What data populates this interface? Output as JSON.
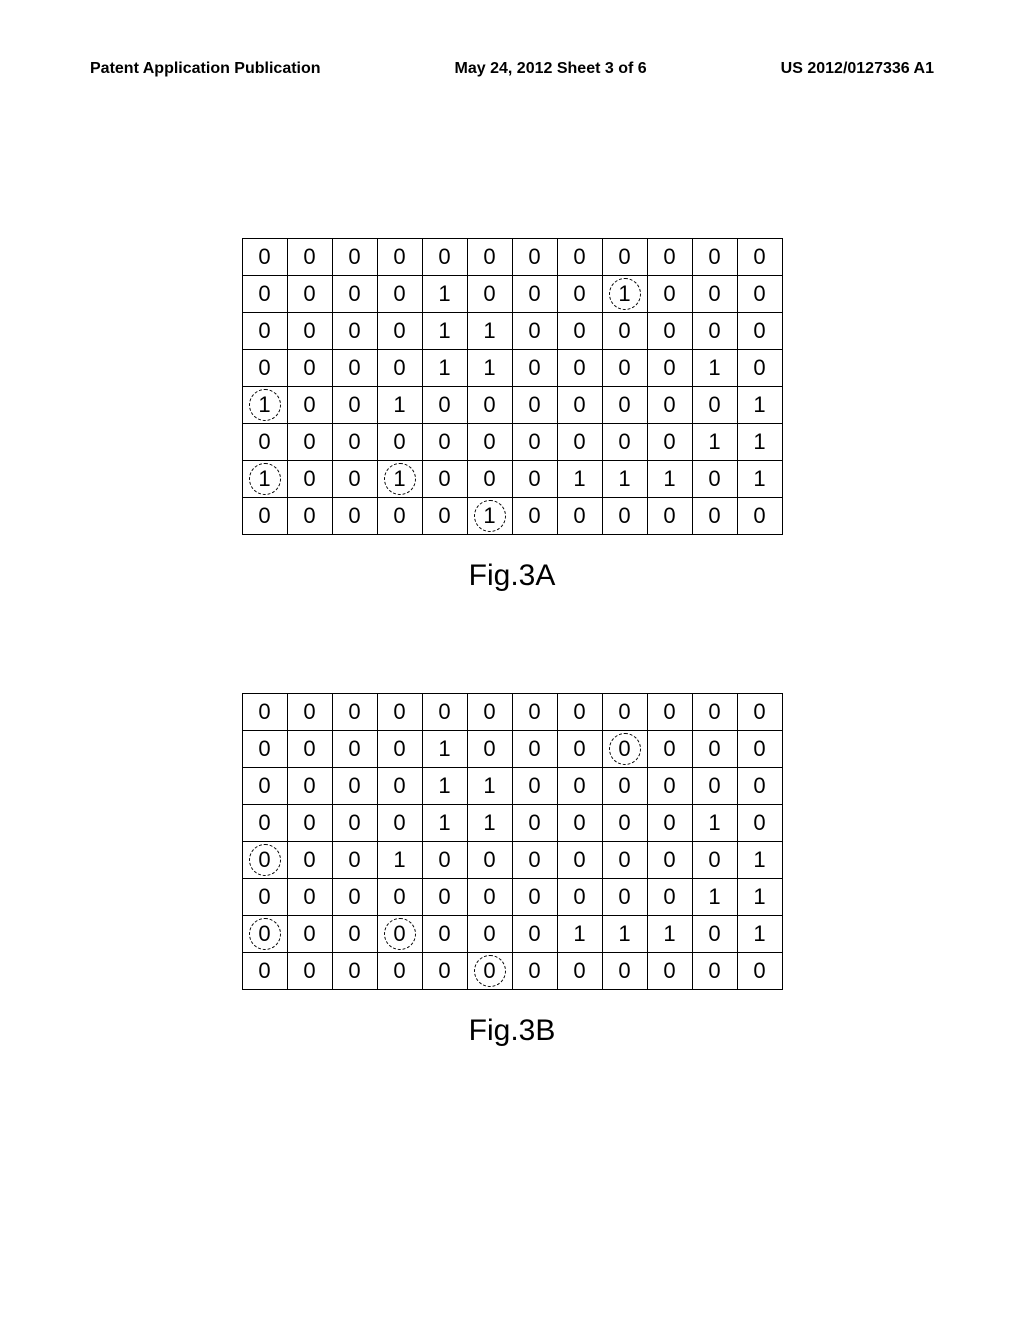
{
  "header": {
    "left": "Patent Application Publication",
    "center": "May 24, 2012  Sheet 3 of 6",
    "right": "US 2012/0127336 A1"
  },
  "figures": [
    {
      "caption": "Fig.3A",
      "cols": 12,
      "cells": [
        [
          [
            0,
            0
          ],
          [
            0,
            0
          ],
          [
            0,
            0
          ],
          [
            0,
            0
          ],
          [
            0,
            0
          ],
          [
            0,
            0
          ],
          [
            0,
            0
          ],
          [
            0,
            0
          ],
          [
            0,
            0
          ],
          [
            0,
            0
          ],
          [
            0,
            0
          ],
          [
            0,
            0
          ]
        ],
        [
          [
            0,
            0
          ],
          [
            0,
            0
          ],
          [
            0,
            0
          ],
          [
            0,
            0
          ],
          [
            1,
            0
          ],
          [
            0,
            0
          ],
          [
            0,
            0
          ],
          [
            0,
            0
          ],
          [
            1,
            1
          ],
          [
            0,
            0
          ],
          [
            0,
            0
          ],
          [
            0,
            0
          ]
        ],
        [
          [
            0,
            0
          ],
          [
            0,
            0
          ],
          [
            0,
            0
          ],
          [
            0,
            0
          ],
          [
            1,
            0
          ],
          [
            1,
            0
          ],
          [
            0,
            0
          ],
          [
            0,
            0
          ],
          [
            0,
            0
          ],
          [
            0,
            0
          ],
          [
            0,
            0
          ],
          [
            0,
            0
          ]
        ],
        [
          [
            0,
            0
          ],
          [
            0,
            0
          ],
          [
            0,
            0
          ],
          [
            0,
            0
          ],
          [
            1,
            0
          ],
          [
            1,
            0
          ],
          [
            0,
            0
          ],
          [
            0,
            0
          ],
          [
            0,
            0
          ],
          [
            0,
            0
          ],
          [
            1,
            0
          ],
          [
            0,
            0
          ]
        ],
        [
          [
            1,
            1
          ],
          [
            0,
            0
          ],
          [
            0,
            0
          ],
          [
            1,
            0
          ],
          [
            0,
            0
          ],
          [
            0,
            0
          ],
          [
            0,
            0
          ],
          [
            0,
            0
          ],
          [
            0,
            0
          ],
          [
            0,
            0
          ],
          [
            0,
            0
          ],
          [
            1,
            0
          ]
        ],
        [
          [
            0,
            0
          ],
          [
            0,
            0
          ],
          [
            0,
            0
          ],
          [
            0,
            0
          ],
          [
            0,
            0
          ],
          [
            0,
            0
          ],
          [
            0,
            0
          ],
          [
            0,
            0
          ],
          [
            0,
            0
          ],
          [
            0,
            0
          ],
          [
            1,
            0
          ],
          [
            1,
            0
          ]
        ],
        [
          [
            1,
            1
          ],
          [
            0,
            0
          ],
          [
            0,
            0
          ],
          [
            1,
            1
          ],
          [
            0,
            0
          ],
          [
            0,
            0
          ],
          [
            0,
            0
          ],
          [
            1,
            0
          ],
          [
            1,
            0
          ],
          [
            1,
            0
          ],
          [
            0,
            0
          ],
          [
            1,
            0
          ]
        ],
        [
          [
            0,
            0
          ],
          [
            0,
            0
          ],
          [
            0,
            0
          ],
          [
            0,
            0
          ],
          [
            0,
            0
          ],
          [
            1,
            1
          ],
          [
            0,
            0
          ],
          [
            0,
            0
          ],
          [
            0,
            0
          ],
          [
            0,
            0
          ],
          [
            0,
            0
          ],
          [
            0,
            0
          ]
        ]
      ]
    },
    {
      "caption": "Fig.3B",
      "cols": 12,
      "cells": [
        [
          [
            0,
            0
          ],
          [
            0,
            0
          ],
          [
            0,
            0
          ],
          [
            0,
            0
          ],
          [
            0,
            0
          ],
          [
            0,
            0
          ],
          [
            0,
            0
          ],
          [
            0,
            0
          ],
          [
            0,
            0
          ],
          [
            0,
            0
          ],
          [
            0,
            0
          ],
          [
            0,
            0
          ]
        ],
        [
          [
            0,
            0
          ],
          [
            0,
            0
          ],
          [
            0,
            0
          ],
          [
            0,
            0
          ],
          [
            1,
            0
          ],
          [
            0,
            0
          ],
          [
            0,
            0
          ],
          [
            0,
            0
          ],
          [
            0,
            1
          ],
          [
            0,
            0
          ],
          [
            0,
            0
          ],
          [
            0,
            0
          ]
        ],
        [
          [
            0,
            0
          ],
          [
            0,
            0
          ],
          [
            0,
            0
          ],
          [
            0,
            0
          ],
          [
            1,
            0
          ],
          [
            1,
            0
          ],
          [
            0,
            0
          ],
          [
            0,
            0
          ],
          [
            0,
            0
          ],
          [
            0,
            0
          ],
          [
            0,
            0
          ],
          [
            0,
            0
          ]
        ],
        [
          [
            0,
            0
          ],
          [
            0,
            0
          ],
          [
            0,
            0
          ],
          [
            0,
            0
          ],
          [
            1,
            0
          ],
          [
            1,
            0
          ],
          [
            0,
            0
          ],
          [
            0,
            0
          ],
          [
            0,
            0
          ],
          [
            0,
            0
          ],
          [
            1,
            0
          ],
          [
            0,
            0
          ]
        ],
        [
          [
            0,
            1
          ],
          [
            0,
            0
          ],
          [
            0,
            0
          ],
          [
            1,
            0
          ],
          [
            0,
            0
          ],
          [
            0,
            0
          ],
          [
            0,
            0
          ],
          [
            0,
            0
          ],
          [
            0,
            0
          ],
          [
            0,
            0
          ],
          [
            0,
            0
          ],
          [
            1,
            0
          ]
        ],
        [
          [
            0,
            0
          ],
          [
            0,
            0
          ],
          [
            0,
            0
          ],
          [
            0,
            0
          ],
          [
            0,
            0
          ],
          [
            0,
            0
          ],
          [
            0,
            0
          ],
          [
            0,
            0
          ],
          [
            0,
            0
          ],
          [
            0,
            0
          ],
          [
            1,
            0
          ],
          [
            1,
            0
          ]
        ],
        [
          [
            0,
            1
          ],
          [
            0,
            0
          ],
          [
            0,
            0
          ],
          [
            0,
            1
          ],
          [
            0,
            0
          ],
          [
            0,
            0
          ],
          [
            0,
            0
          ],
          [
            1,
            0
          ],
          [
            1,
            0
          ],
          [
            1,
            0
          ],
          [
            0,
            0
          ],
          [
            1,
            0
          ]
        ],
        [
          [
            0,
            0
          ],
          [
            0,
            0
          ],
          [
            0,
            0
          ],
          [
            0,
            0
          ],
          [
            0,
            0
          ],
          [
            0,
            1
          ],
          [
            0,
            0
          ],
          [
            0,
            0
          ],
          [
            0,
            0
          ],
          [
            0,
            0
          ],
          [
            0,
            0
          ],
          [
            0,
            0
          ]
        ]
      ]
    }
  ]
}
